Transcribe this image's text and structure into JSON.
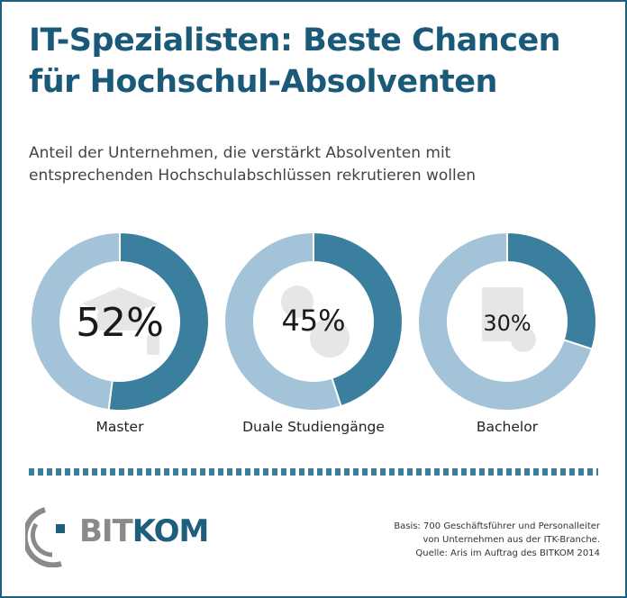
{
  "title_line1": "IT-Spezialisten: Beste Chancen",
  "title_line2": "für Hochschul-Absolventen",
  "subtitle_line1": "Anteil der Unternehmen, die verstärkt Absolventen mit",
  "subtitle_line2": "entsprechenden Hochschulabschlüssen rekrutieren wollen",
  "colors": {
    "value": "#3b7f9e",
    "rest": "#a3c4d8",
    "title": "#1a5a78"
  },
  "chart_data": {
    "type": "pie",
    "variant": "donut",
    "categories": [
      "Master",
      "Duale Studiengänge",
      "Bachelor"
    ],
    "values": [
      52,
      45,
      30
    ],
    "value_labels": [
      "52%",
      "45%",
      "30%"
    ],
    "icons": [
      "graduation-cap-icon",
      "gears-icon",
      "document-icon"
    ]
  },
  "logo": {
    "part1": "BIT",
    "part2": "KOM"
  },
  "note": {
    "line1": "Basis:  700 Geschäftsführer und Personalleiter",
    "line2": "von Unternehmen aus der ITK-Branche.",
    "line3": "Quelle: Aris im Auftrag des BITKOM 2014"
  }
}
